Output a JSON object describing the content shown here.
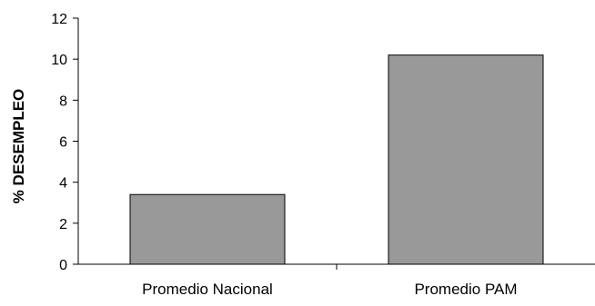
{
  "chart_data": {
    "type": "bar",
    "title": "",
    "xlabel": "",
    "ylabel": "% DESEMPLEO",
    "categories": [
      "Promedio Nacional",
      "Promedio PAM"
    ],
    "values": [
      3.4,
      10.2
    ],
    "ylim": [
      0,
      12
    ],
    "yticks": [
      0,
      2,
      4,
      6,
      8,
      10,
      12
    ],
    "grid": false,
    "legend": "none",
    "colors": {
      "bar_fill": "#999999",
      "bar_stroke": "#000000",
      "axis": "#000000",
      "background": "#ffffff"
    }
  }
}
